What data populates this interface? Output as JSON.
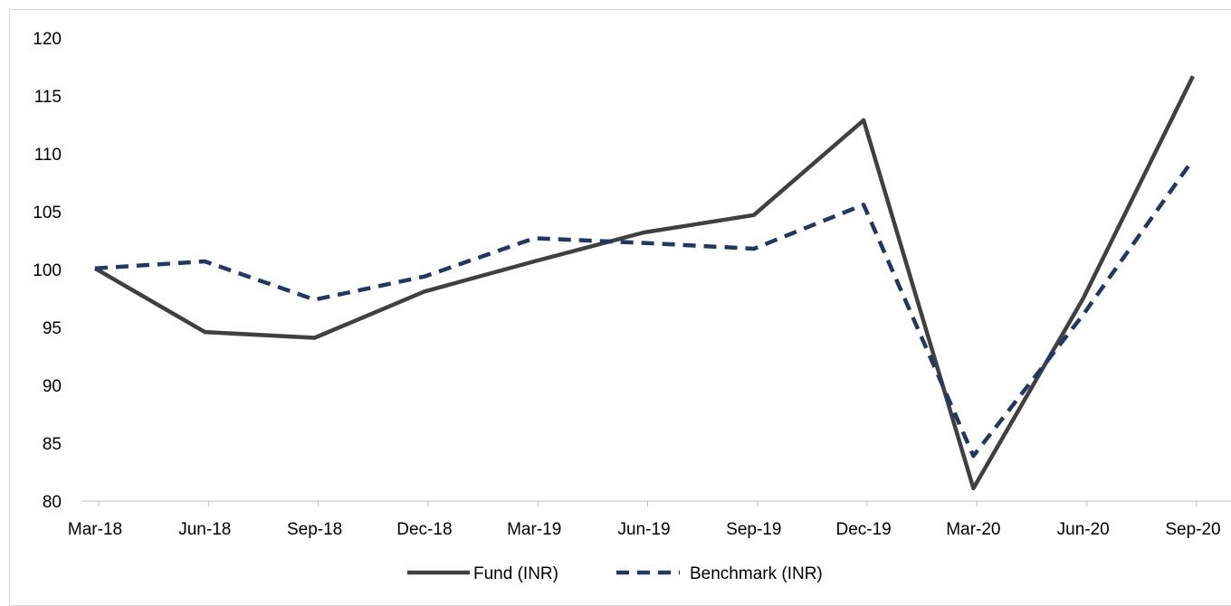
{
  "chart_data": {
    "type": "line",
    "categories": [
      "Mar-18",
      "Jun-18",
      "Sep-18",
      "Dec-18",
      "Mar-19",
      "Jun-19",
      "Sep-19",
      "Dec-19",
      "Mar-20",
      "Jun-20",
      "Sep-20"
    ],
    "series": [
      {
        "name": "Fund (INR)",
        "color": "#404040",
        "style": "solid",
        "values": [
          100.1,
          94.6,
          94.1,
          98.1,
          100.7,
          103.2,
          104.7,
          112.9,
          81.1,
          97.5,
          116.7
        ]
      },
      {
        "name": "Benchmark (INR)",
        "color": "#1f3864",
        "style": "dashed",
        "values": [
          100.1,
          100.7,
          97.4,
          99.4,
          102.7,
          102.3,
          101.8,
          105.6,
          83.9,
          96.1,
          109.5
        ]
      }
    ],
    "yticks": [
      80,
      85,
      90,
      95,
      100,
      105,
      110,
      115,
      120
    ],
    "ylim": [
      80,
      120
    ],
    "grid": false,
    "legend_position": "bottom"
  }
}
